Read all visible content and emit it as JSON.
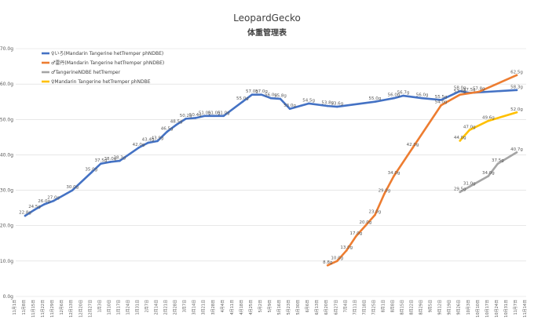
{
  "chart_data": {
    "type": "line",
    "title": "LeopardGecko",
    "subtitle": "体重管理表",
    "ylim": [
      0,
      70
    ],
    "yticks": [
      "0.0g",
      "10.0g",
      "20.0g",
      "30.0g",
      "40.0g",
      "50.0g",
      "60.0g",
      "70.0g"
    ],
    "ytick_values": [
      0,
      10,
      20,
      30,
      40,
      50,
      60,
      70
    ],
    "grid": true,
    "legend_position": "top-left",
    "categories": [
      "11月1日",
      "11月8日",
      "11月15日",
      "11月22日",
      "11月29日",
      "12月6日",
      "12月13日",
      "12月20日",
      "12月27日",
      "1月3日",
      "1月10日",
      "1月17日",
      "1月24日",
      "1月31日",
      "2月7日",
      "2月14日",
      "2月21日",
      "2月28日",
      "3月7日",
      "3月14日",
      "3月21日",
      "3月28日",
      "4月4日",
      "4月11日",
      "4月18日",
      "4月25日",
      "5月2日",
      "5月9日",
      "5月16日",
      "5月23日",
      "5月30日",
      "6月6日",
      "6月13日",
      "6月20日",
      "6月27日",
      "7月4日",
      "7月11日",
      "7月18日",
      "7月25日",
      "8月1日",
      "8月8日",
      "8月15日",
      "8月22日",
      "8月29日",
      "9月5日",
      "9月12日",
      "9月19日",
      "9月26日",
      "10月3日",
      "10月10日",
      "10月17日",
      "10月24日",
      "10月31日",
      "11月7日",
      "11月14日"
    ],
    "series": [
      {
        "name": "♀いろ(Mandarin Tangerine hetTremper phNDBE)",
        "color": "#4472c4",
        "points": [
          [
            1,
            22.8,
            "22.8g"
          ],
          [
            2,
            24.5,
            "24.5g"
          ],
          [
            3,
            26.0,
            "26.0g"
          ],
          [
            4,
            27.0,
            "27.0g"
          ],
          [
            6,
            30.0,
            "30.0g"
          ],
          [
            8,
            35.0,
            "35.0g"
          ],
          [
            9,
            37.5,
            "37.5g"
          ],
          [
            10,
            38.0,
            "38.0g"
          ],
          [
            11,
            38.3,
            "38.3g"
          ],
          [
            13,
            42.0,
            "42.0g"
          ],
          [
            14,
            43.4,
            "43.4g"
          ],
          [
            15,
            43.9,
            "43.9g"
          ],
          [
            16,
            46.5,
            "46.5g"
          ],
          [
            17,
            48.5,
            "48.5g"
          ],
          [
            18,
            50.2,
            "50.2g"
          ],
          [
            19,
            50.4,
            "50.4g"
          ],
          [
            20,
            51.0,
            "51.0g"
          ],
          [
            21,
            51.0,
            "51.0g"
          ],
          [
            22,
            51.0,
            "51.0g"
          ],
          [
            24,
            55.0,
            "55.0g"
          ],
          [
            25,
            57.0,
            "57.0g"
          ],
          [
            26,
            57.0,
            "57.0g"
          ],
          [
            27,
            56.0,
            "56.0g"
          ],
          [
            28,
            55.8,
            "55.8g"
          ],
          [
            29,
            53.0,
            "53.0g"
          ],
          [
            31,
            54.5,
            "54.5g"
          ],
          [
            33,
            53.8,
            "53.8g"
          ],
          [
            34,
            53.6,
            "53.6g"
          ],
          [
            38,
            55.0,
            "55.0g"
          ],
          [
            40,
            56.0,
            "56.0g"
          ],
          [
            41,
            56.7,
            "56.7g"
          ],
          [
            43,
            56.0,
            "56.0g"
          ],
          [
            45,
            55.5,
            "55.5g"
          ],
          [
            47,
            58.0,
            "58.0g"
          ],
          [
            48,
            57.5,
            "57.5g"
          ],
          [
            53,
            58.3,
            "58.3g"
          ]
        ]
      },
      {
        "name": "♂雷丹(Mandarin Tangerine hetTremper phNDBE)",
        "color": "#ed7d31",
        "points": [
          [
            33,
            8.8,
            "8.8g"
          ],
          [
            34,
            10.0,
            "10.0g"
          ],
          [
            35,
            13.0,
            "13.0g"
          ],
          [
            36,
            17.0,
            "17.0g"
          ],
          [
            37,
            20.0,
            "20.0g"
          ],
          [
            38,
            23.0,
            "23.0g"
          ],
          [
            39,
            29.0,
            "29.0g"
          ],
          [
            40,
            34.0,
            "34.0g"
          ],
          [
            42,
            42.0,
            "42.0g"
          ],
          [
            45,
            54.0,
            "54.0g"
          ],
          [
            47,
            57.0,
            "57.0g"
          ],
          [
            49,
            57.8,
            "57.8g"
          ],
          [
            53,
            62.5,
            "62.5g"
          ]
        ]
      },
      {
        "name": "♂TangerineNDBE hetTremper",
        "color": "#a5a5a5",
        "points": [
          [
            47,
            29.5,
            "29.5g"
          ],
          [
            48,
            31.0,
            "31.0g"
          ],
          [
            50,
            34.0,
            "34.0g"
          ],
          [
            51,
            37.5,
            "37.5g"
          ],
          [
            53,
            40.7,
            "40.7g"
          ]
        ]
      },
      {
        "name": "♀Mandarin Tangerine hetTremper phNDBE",
        "color": "#ffc000",
        "points": [
          [
            47,
            44.0,
            "44.0g"
          ],
          [
            48,
            47.0,
            "47.0g"
          ],
          [
            50,
            49.6,
            "49.6g"
          ],
          [
            53,
            52.0,
            "52.0g"
          ]
        ]
      }
    ]
  }
}
